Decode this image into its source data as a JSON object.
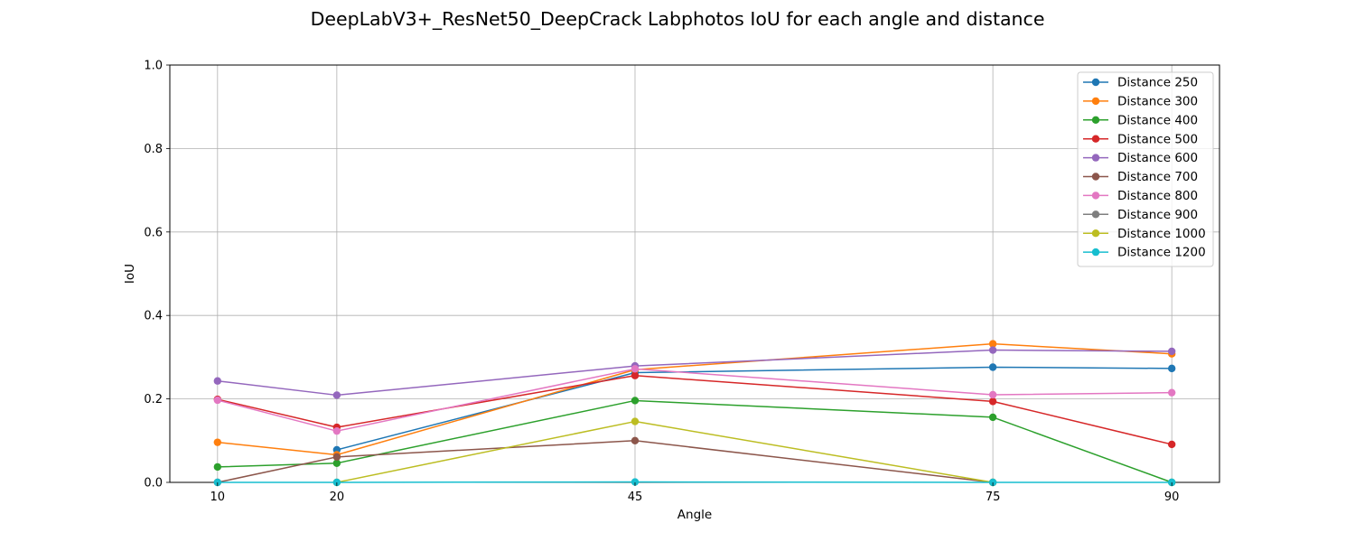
{
  "chart_data": {
    "type": "line",
    "title": "DeepLabV3+_ResNet50_DeepCrack Labphotos IoU for each angle and distance",
    "xlabel": "Angle",
    "ylabel": "IoU",
    "x": [
      10,
      20,
      45,
      75,
      90
    ],
    "xticks": [
      "10",
      "20",
      "45",
      "75",
      "90"
    ],
    "xlim": [
      6,
      94
    ],
    "ylim": [
      0.0,
      1.0
    ],
    "yticks": [
      "0.0",
      "0.2",
      "0.4",
      "0.6",
      "0.8",
      "1.0"
    ],
    "grid": true,
    "legend_position": "top-right",
    "series": [
      {
        "name": "Distance 250",
        "color": "#1f77b4",
        "points": [
          [
            20,
            0.078
          ],
          [
            45,
            0.263
          ],
          [
            75,
            0.276
          ],
          [
            90,
            0.273
          ]
        ]
      },
      {
        "name": "Distance 300",
        "color": "#ff7f0e",
        "points": [
          [
            10,
            0.096
          ],
          [
            20,
            0.066
          ],
          [
            45,
            0.27
          ],
          [
            75,
            0.332
          ],
          [
            90,
            0.308
          ]
        ]
      },
      {
        "name": "Distance 400",
        "color": "#2ca02c",
        "points": [
          [
            10,
            0.037
          ],
          [
            20,
            0.046
          ],
          [
            45,
            0.196
          ],
          [
            75,
            0.156
          ],
          [
            90,
            0.0
          ]
        ]
      },
      {
        "name": "Distance 500",
        "color": "#d62728",
        "points": [
          [
            10,
            0.199
          ],
          [
            20,
            0.132
          ],
          [
            45,
            0.256
          ],
          [
            75,
            0.194
          ],
          [
            90,
            0.091
          ]
        ]
      },
      {
        "name": "Distance 600",
        "color": "#9467bd",
        "points": [
          [
            10,
            0.243
          ],
          [
            20,
            0.209
          ],
          [
            45,
            0.279
          ],
          [
            75,
            0.317
          ],
          [
            90,
            0.314
          ]
        ]
      },
      {
        "name": "Distance 700",
        "color": "#8c564b",
        "points": [
          [
            10,
            0.0
          ],
          [
            20,
            0.061
          ],
          [
            45,
            0.1
          ],
          [
            75,
            0.0
          ]
        ]
      },
      {
        "name": "Distance 800",
        "color": "#e377c2",
        "points": [
          [
            10,
            0.197
          ],
          [
            20,
            0.123
          ],
          [
            45,
            0.272
          ],
          [
            75,
            0.21
          ],
          [
            90,
            0.215
          ]
        ]
      },
      {
        "name": "Distance 900",
        "color": "#7f7f7f",
        "points": []
      },
      {
        "name": "Distance 1000",
        "color": "#bcbd22",
        "points": [
          [
            20,
            0.0
          ],
          [
            45,
            0.146
          ],
          [
            75,
            0.0
          ]
        ]
      },
      {
        "name": "Distance 1200",
        "color": "#17becf",
        "points": [
          [
            10,
            0.0
          ],
          [
            20,
            0.0
          ],
          [
            45,
            0.001
          ],
          [
            75,
            0.0
          ],
          [
            90,
            0.0
          ]
        ]
      }
    ]
  }
}
